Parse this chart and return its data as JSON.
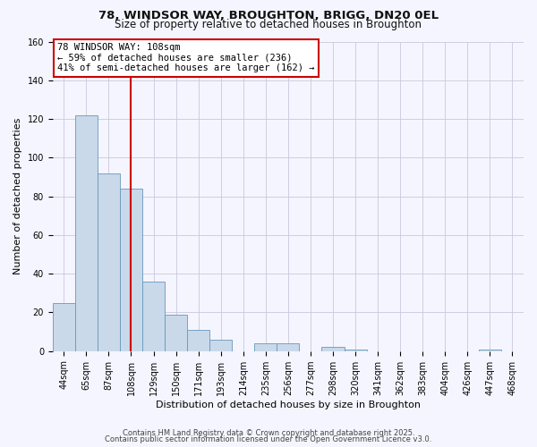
{
  "title1": "78, WINDSOR WAY, BROUGHTON, BRIGG, DN20 0EL",
  "title2": "Size of property relative to detached houses in Broughton",
  "xlabel": "Distribution of detached houses by size in Broughton",
  "ylabel": "Number of detached properties",
  "categories": [
    "44sqm",
    "65sqm",
    "87sqm",
    "108sqm",
    "129sqm",
    "150sqm",
    "171sqm",
    "193sqm",
    "214sqm",
    "235sqm",
    "256sqm",
    "277sqm",
    "298sqm",
    "320sqm",
    "341sqm",
    "362sqm",
    "383sqm",
    "404sqm",
    "426sqm",
    "447sqm",
    "468sqm"
  ],
  "values": [
    25,
    122,
    92,
    84,
    36,
    19,
    11,
    6,
    0,
    4,
    4,
    0,
    2,
    1,
    0,
    0,
    0,
    0,
    0,
    1,
    0
  ],
  "bar_color": "#c9d9ea",
  "bar_edge_color": "#6699bb",
  "vline_x_index": 3,
  "vline_color": "#cc0000",
  "annotation_line1": "78 WINDSOR WAY: 108sqm",
  "annotation_line2": "← 59% of detached houses are smaller (236)",
  "annotation_line3": "41% of semi-detached houses are larger (162) →",
  "annotation_box_edge_color": "#cc0000",
  "ylim": [
    0,
    160
  ],
  "yticks": [
    0,
    20,
    40,
    60,
    80,
    100,
    120,
    140,
    160
  ],
  "footer1": "Contains HM Land Registry data © Crown copyright and database right 2025.",
  "footer2": "Contains public sector information licensed under the Open Government Licence v3.0.",
  "bg_color": "#f5f5ff",
  "grid_color": "#c8c8dd",
  "title1_fontsize": 9.5,
  "title2_fontsize": 8.5,
  "tick_fontsize": 7.0,
  "label_fontsize": 8.0,
  "annot_fontsize": 7.5,
  "footer_fontsize": 6.0
}
